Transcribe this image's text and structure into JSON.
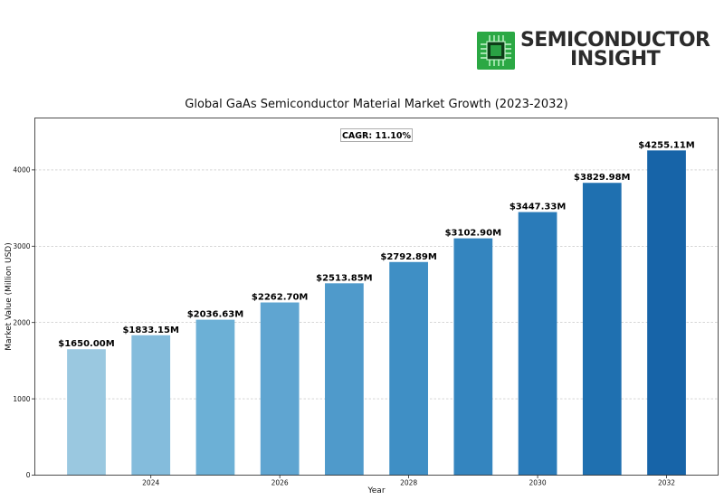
{
  "logo": {
    "line1": "SEMICONDUCTOR",
    "line2": "INSIGHT",
    "accent_color": "#2fb34a"
  },
  "annotation": {
    "cagr": "CAGR: 11.10%"
  },
  "chart_data": {
    "type": "bar",
    "title": "Global GaAs Semiconductor Material Market Growth (2023-2032)",
    "xlabel": "Year",
    "ylabel": "Market Value (Million USD)",
    "categories": [
      "2023",
      "2024",
      "2025",
      "2026",
      "2027",
      "2028",
      "2029",
      "2030",
      "2031",
      "2032"
    ],
    "values": [
      1650.0,
      1833.15,
      2036.63,
      2262.7,
      2513.85,
      2792.89,
      3102.9,
      3447.33,
      3829.98,
      4255.11
    ],
    "data_labels": [
      "$1650.00M",
      "$1833.15M",
      "$2036.63M",
      "$2262.70M",
      "$2513.85M",
      "$2792.89M",
      "$3102.90M",
      "$3447.33M",
      "$3829.98M",
      "$4255.11M"
    ],
    "x_ticks": [
      "2024",
      "2026",
      "2028",
      "2030",
      "2032"
    ],
    "y_ticks": [
      "0",
      "1000",
      "2000",
      "3000",
      "4000"
    ],
    "ylim": [
      0,
      4680
    ],
    "xlim": [
      2022.2,
      2032.8
    ],
    "grid": "horizontal dashed",
    "bar_colors": [
      "#9ac8e0",
      "#84bcdc",
      "#6cb0d6",
      "#5fa5d1",
      "#4f9acb",
      "#3f8fc5",
      "#3485bf",
      "#2a7bb9",
      "#1f70b0",
      "#1764a8"
    ]
  }
}
